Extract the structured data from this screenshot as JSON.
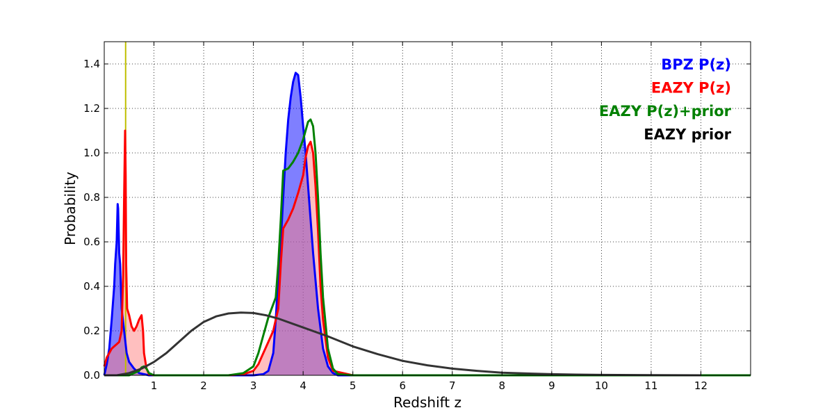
{
  "chart_data": {
    "type": "area",
    "xlabel": "Redshift z",
    "ylabel": "Probability",
    "xlim": [
      0,
      13
    ],
    "ylim": [
      0,
      1.5
    ],
    "x_ticks": [
      1,
      2,
      3,
      4,
      5,
      6,
      7,
      8,
      9,
      10,
      11,
      12
    ],
    "y_ticks": [
      0.0,
      0.2,
      0.4,
      0.6,
      0.8,
      1.0,
      1.2,
      1.4
    ],
    "x_tick_labels": [
      "1",
      "2",
      "3",
      "4",
      "5",
      "6",
      "7",
      "8",
      "9",
      "10",
      "11",
      "12"
    ],
    "y_tick_labels": [
      "0.0",
      "0.2",
      "0.4",
      "0.6",
      "0.8",
      "1.0",
      "1.2",
      "1.4"
    ],
    "grid": true,
    "legend_position": "top-right",
    "vline": {
      "x": 0.43,
      "color": "#bfbf00"
    },
    "series": [
      {
        "name": "BPZ P(z)",
        "color": "#0000ff",
        "fill": "#0000ff",
        "filled": true,
        "x": [
          0.0,
          0.05,
          0.1,
          0.15,
          0.2,
          0.22,
          0.25,
          0.27,
          0.28,
          0.3,
          0.32,
          0.35,
          0.4,
          0.45,
          0.5,
          0.6,
          0.7,
          0.8,
          0.9,
          1.0,
          1.5,
          2.0,
          2.5,
          3.0,
          3.2,
          3.3,
          3.4,
          3.45,
          3.5,
          3.55,
          3.6,
          3.65,
          3.7,
          3.75,
          3.8,
          3.85,
          3.9,
          3.95,
          4.0,
          4.05,
          4.1,
          4.15,
          4.2,
          4.3,
          4.4,
          4.5,
          4.6,
          4.7,
          5.0,
          6.0,
          8.0,
          10.0,
          12.0,
          13.0
        ],
        "y": [
          0.0,
          0.05,
          0.12,
          0.25,
          0.4,
          0.5,
          0.6,
          0.77,
          0.75,
          0.55,
          0.5,
          0.3,
          0.2,
          0.1,
          0.06,
          0.03,
          0.01,
          0.005,
          0.0,
          0.0,
          0.0,
          0.0,
          0.0,
          0.0,
          0.005,
          0.02,
          0.1,
          0.25,
          0.45,
          0.6,
          0.8,
          1.0,
          1.15,
          1.25,
          1.32,
          1.36,
          1.35,
          1.25,
          1.12,
          1.0,
          0.85,
          0.7,
          0.55,
          0.3,
          0.12,
          0.04,
          0.01,
          0.0,
          0.0,
          0.0,
          0.0,
          0.0,
          0.0,
          0.0
        ]
      },
      {
        "name": "EAZY P(z)",
        "color": "#ff0000",
        "fill": "#ff8080",
        "filled": true,
        "x": [
          0.0,
          0.05,
          0.1,
          0.15,
          0.2,
          0.25,
          0.3,
          0.35,
          0.38,
          0.4,
          0.42,
          0.43,
          0.44,
          0.46,
          0.5,
          0.55,
          0.6,
          0.65,
          0.7,
          0.75,
          0.78,
          0.8,
          0.85,
          0.9,
          1.0,
          1.5,
          2.0,
          2.5,
          2.8,
          3.0,
          3.1,
          3.2,
          3.3,
          3.4,
          3.5,
          3.55,
          3.6,
          3.65,
          3.7,
          3.8,
          3.9,
          4.0,
          4.05,
          4.1,
          4.15,
          4.2,
          4.25,
          4.3,
          4.35,
          4.4,
          4.5,
          4.6,
          5.0,
          6.0,
          8.0,
          10.0,
          12.0,
          13.0
        ],
        "y": [
          0.04,
          0.08,
          0.1,
          0.12,
          0.13,
          0.14,
          0.15,
          0.2,
          0.45,
          0.8,
          1.1,
          0.9,
          0.5,
          0.3,
          0.27,
          0.22,
          0.2,
          0.22,
          0.25,
          0.27,
          0.2,
          0.1,
          0.03,
          0.005,
          0.0,
          0.0,
          0.0,
          0.0,
          0.005,
          0.02,
          0.05,
          0.1,
          0.15,
          0.2,
          0.3,
          0.5,
          0.66,
          0.68,
          0.7,
          0.75,
          0.82,
          0.9,
          0.98,
          1.03,
          1.05,
          1.0,
          0.85,
          0.65,
          0.4,
          0.25,
          0.08,
          0.02,
          0.0,
          0.0,
          0.0,
          0.0,
          0.0,
          0.0
        ]
      },
      {
        "name": "EAZY P(z)+prior",
        "color": "#008000",
        "fill": null,
        "filled": false,
        "x": [
          0.0,
          0.3,
          0.4,
          0.5,
          0.6,
          0.7,
          0.75,
          0.8,
          0.85,
          0.9,
          1.0,
          1.5,
          2.0,
          2.5,
          2.8,
          3.0,
          3.1,
          3.2,
          3.3,
          3.4,
          3.45,
          3.5,
          3.55,
          3.6,
          3.7,
          3.8,
          3.9,
          4.0,
          4.05,
          4.1,
          4.15,
          4.2,
          4.25,
          4.3,
          4.35,
          4.4,
          4.5,
          4.6,
          4.7,
          5.0,
          6.0,
          8.0,
          10.0,
          12.0,
          13.0
        ],
        "y": [
          0.0,
          0.0,
          0.0,
          0.0,
          0.01,
          0.02,
          0.035,
          0.04,
          0.03,
          0.01,
          0.0,
          0.0,
          0.0,
          0.0,
          0.01,
          0.04,
          0.1,
          0.18,
          0.26,
          0.32,
          0.35,
          0.5,
          0.7,
          0.92,
          0.93,
          0.96,
          1.0,
          1.06,
          1.1,
          1.14,
          1.15,
          1.12,
          1.0,
          0.8,
          0.55,
          0.35,
          0.12,
          0.03,
          0.005,
          0.0,
          0.0,
          0.0,
          0.0,
          0.0,
          0.0
        ]
      },
      {
        "name": "EAZY prior",
        "color": "#333333",
        "fill": null,
        "filled": false,
        "x": [
          0.0,
          0.25,
          0.5,
          0.75,
          1.0,
          1.25,
          1.5,
          1.75,
          2.0,
          2.25,
          2.5,
          2.75,
          3.0,
          3.25,
          3.5,
          3.75,
          4.0,
          4.5,
          5.0,
          5.5,
          6.0,
          6.5,
          7.0,
          7.5,
          8.0,
          8.5,
          9.0,
          9.5,
          10.0,
          11.0,
          12.0
        ],
        "y": [
          0.0,
          0.0,
          0.01,
          0.03,
          0.06,
          0.1,
          0.15,
          0.2,
          0.24,
          0.265,
          0.278,
          0.282,
          0.28,
          0.27,
          0.255,
          0.235,
          0.215,
          0.175,
          0.13,
          0.095,
          0.065,
          0.045,
          0.03,
          0.02,
          0.012,
          0.008,
          0.005,
          0.003,
          0.002,
          0.001,
          0.0
        ]
      }
    ],
    "shared_overlap_fill": "#8b559c"
  }
}
